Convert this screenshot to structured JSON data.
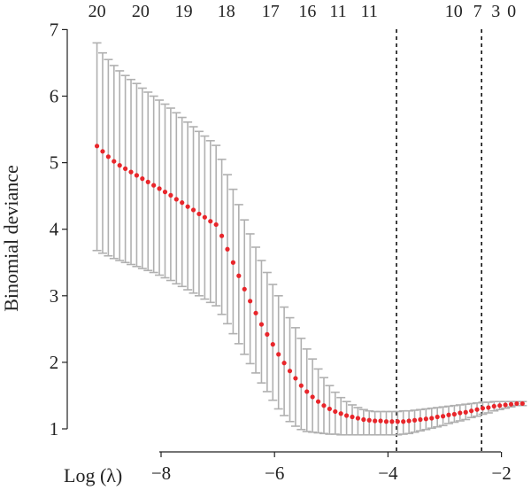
{
  "chart_data": {
    "type": "scatter",
    "xlabel": "Log (λ)",
    "ylabel": "Binomial deviance",
    "xlim": [
      -9.35,
      -1.4
    ],
    "ylim": [
      0.85,
      7.05
    ],
    "x_ticks": [
      -8,
      -6,
      -4,
      -2
    ],
    "x_tick_labels": [
      "−8",
      "−6",
      "−4",
      "−2"
    ],
    "y_ticks": [
      1,
      2,
      3,
      4,
      5,
      6,
      7
    ],
    "y_tick_labels": [
      "1",
      "2",
      "3",
      "4",
      "5",
      "6",
      "7"
    ],
    "top_axis": {
      "x": [
        -9.13,
        -8.36,
        -7.6,
        -6.85,
        -6.07,
        -5.42,
        -4.88,
        -4.33,
        -2.84,
        -2.42,
        -2.1,
        -1.82
      ],
      "labels": [
        "20",
        "20",
        "19",
        "18",
        "17",
        "16",
        "11",
        "11",
        "10",
        "7",
        "3",
        "0"
      ]
    },
    "vlines": [
      -3.85,
      -2.35
    ],
    "grid": false,
    "point_color": "#e8262b",
    "error_bar_color": "#b0b0b0",
    "series": [
      {
        "x": [
          -9.13,
          -9.03,
          -8.93,
          -8.83,
          -8.73,
          -8.63,
          -8.53,
          -8.43,
          -8.33,
          -8.23,
          -8.13,
          -8.03,
          -7.93,
          -7.83,
          -7.73,
          -7.63,
          -7.53,
          -7.43,
          -7.33,
          -7.23,
          -7.13,
          -7.03,
          -6.93,
          -6.83,
          -6.73,
          -6.63,
          -6.53,
          -6.43,
          -6.33,
          -6.23,
          -6.13,
          -6.03,
          -5.93,
          -5.83,
          -5.73,
          -5.63,
          -5.53,
          -5.43,
          -5.33,
          -5.23,
          -5.13,
          -5.03,
          -4.93,
          -4.83,
          -4.73,
          -4.63,
          -4.53,
          -4.43,
          -4.33,
          -4.23,
          -4.13,
          -4.03,
          -3.93,
          -3.83,
          -3.73,
          -3.63,
          -3.53,
          -3.43,
          -3.33,
          -3.23,
          -3.13,
          -3.03,
          -2.93,
          -2.83,
          -2.73,
          -2.63,
          -2.53,
          -2.43,
          -2.33,
          -2.23,
          -2.13,
          -2.03,
          -1.93,
          -1.83,
          -1.73,
          -1.63
        ],
        "y": [
          5.25,
          5.17,
          5.09,
          5.02,
          4.96,
          4.91,
          4.86,
          4.81,
          4.76,
          4.71,
          4.66,
          4.61,
          4.56,
          4.51,
          4.45,
          4.4,
          4.34,
          4.29,
          4.23,
          4.18,
          4.12,
          4.07,
          3.9,
          3.7,
          3.5,
          3.3,
          3.1,
          2.92,
          2.74,
          2.57,
          2.42,
          2.27,
          2.12,
          1.99,
          1.87,
          1.76,
          1.65,
          1.56,
          1.48,
          1.41,
          1.35,
          1.3,
          1.26,
          1.23,
          1.2,
          1.18,
          1.16,
          1.14,
          1.13,
          1.12,
          1.12,
          1.11,
          1.11,
          1.11,
          1.11,
          1.12,
          1.13,
          1.14,
          1.15,
          1.16,
          1.18,
          1.19,
          1.21,
          1.22,
          1.24,
          1.25,
          1.27,
          1.29,
          1.31,
          1.32,
          1.34,
          1.35,
          1.36,
          1.37,
          1.38,
          1.38
        ],
        "upper": [
          6.8,
          6.65,
          6.55,
          6.46,
          6.38,
          6.31,
          6.25,
          6.19,
          6.12,
          6.06,
          6.0,
          5.94,
          5.88,
          5.82,
          5.75,
          5.68,
          5.61,
          5.54,
          5.47,
          5.4,
          5.33,
          5.26,
          5.05,
          4.82,
          4.6,
          4.37,
          4.14,
          3.93,
          3.73,
          3.53,
          3.35,
          3.17,
          3.0,
          2.83,
          2.67,
          2.52,
          2.36,
          2.2,
          2.05,
          1.9,
          1.77,
          1.65,
          1.55,
          1.47,
          1.41,
          1.36,
          1.32,
          1.29,
          1.27,
          1.26,
          1.26,
          1.26,
          1.26,
          1.26,
          1.27,
          1.27,
          1.28,
          1.29,
          1.3,
          1.31,
          1.32,
          1.33,
          1.34,
          1.35,
          1.36,
          1.37,
          1.38,
          1.39,
          1.4,
          1.4,
          1.41,
          1.41,
          1.41,
          1.41,
          1.41,
          1.41
        ],
        "lower": [
          3.68,
          3.64,
          3.6,
          3.56,
          3.53,
          3.5,
          3.47,
          3.44,
          3.41,
          3.38,
          3.35,
          3.31,
          3.27,
          3.23,
          3.18,
          3.14,
          3.09,
          3.04,
          3.0,
          2.95,
          2.9,
          2.85,
          2.72,
          2.58,
          2.43,
          2.28,
          2.12,
          1.98,
          1.84,
          1.69,
          1.56,
          1.43,
          1.3,
          1.2,
          1.11,
          1.04,
          0.99,
          0.96,
          0.95,
          0.94,
          0.93,
          0.92,
          0.92,
          0.91,
          0.91,
          0.91,
          0.91,
          0.91,
          0.91,
          0.91,
          0.91,
          0.91,
          0.91,
          0.91,
          0.92,
          0.93,
          0.95,
          0.97,
          0.99,
          1.01,
          1.03,
          1.05,
          1.08,
          1.1,
          1.12,
          1.14,
          1.17,
          1.19,
          1.22,
          1.24,
          1.27,
          1.29,
          1.31,
          1.33,
          1.35,
          1.35
        ]
      }
    ]
  }
}
